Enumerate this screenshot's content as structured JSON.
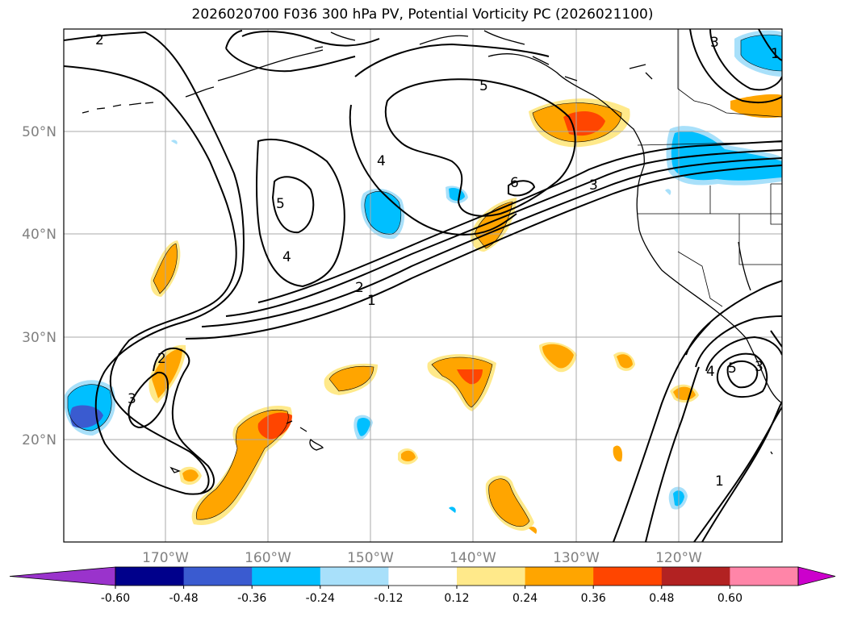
{
  "title": "2026020700 F036 300 hPa PV, Potential Vorticity PC (2026021100)",
  "lat_labels": [
    "50°N",
    "40°N",
    "30°N",
    "20°N"
  ],
  "lon_labels": [
    "170°W",
    "160°W",
    "150°W",
    "140°W",
    "130°W",
    "120°W"
  ],
  "colorbar": {
    "ticks": [
      "-0.60",
      "-0.48",
      "-0.36",
      "-0.24",
      "-0.12",
      "0.12",
      "0.24",
      "0.36",
      "0.48",
      "0.60"
    ],
    "colors": [
      "#9a33cc",
      "#00008b",
      "#3a5bd0",
      "#00bfff",
      "#a8e0fa",
      "#ffffff",
      "#ffe98a",
      "#ffa500",
      "#ff4500",
      "#b22222",
      "#ff85a8",
      "#cc00cc"
    ]
  },
  "contour_labels": [
    "2",
    "5",
    "4",
    "4",
    "5",
    "6",
    "3",
    "2",
    "1",
    "3",
    "2",
    "3",
    "1",
    "4",
    "5",
    "3",
    "1"
  ],
  "colors": {
    "pos_light": "#ffe98a",
    "pos_med": "#ffa500",
    "pos_strong": "#ff4500",
    "neg_light": "#a8e0fa",
    "neg_med": "#00bfff",
    "neg_strong": "#3a5bd0"
  }
}
